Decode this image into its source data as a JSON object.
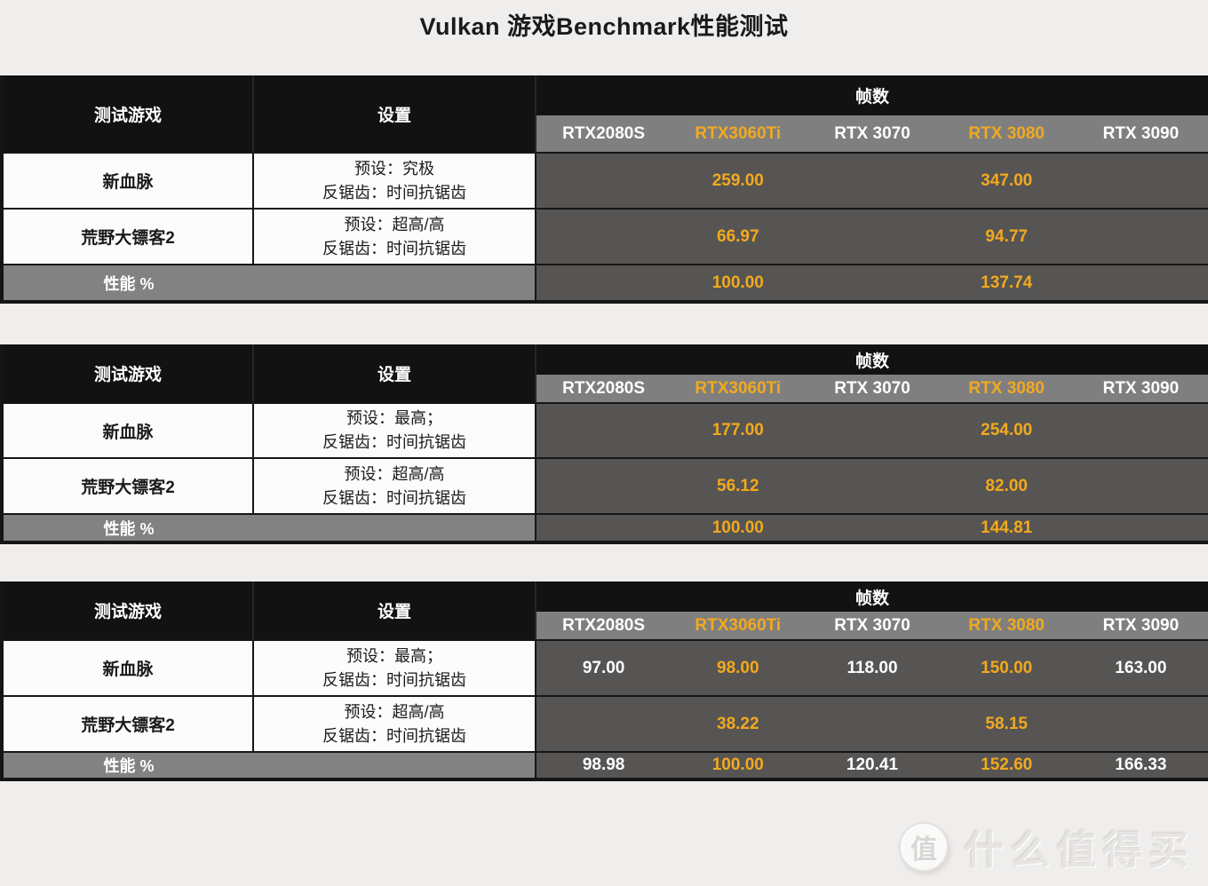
{
  "title": "Vulkan 游戏Benchmark性能测试",
  "colors": {
    "page_bg": "#f0eeec",
    "header_bg": "#121212",
    "gpu_row_bg": "#7f7f7f",
    "value_cell_bg": "#575553",
    "perf_label_bg": "#828282",
    "white_cell_bg": "#fcfcfc",
    "gold": "#f2a91e",
    "white_text": "#ffffff",
    "black_text": "#1a1a1a",
    "border": "#161616"
  },
  "headers": {
    "game": "测试游戏",
    "settings": "设置",
    "frames": "帧数",
    "gpus": [
      "RTX2080S",
      "RTX3060Ti",
      "RTX 3070",
      "RTX 3080",
      "RTX 3090"
    ],
    "highlight_gpus": [
      "RTX3060Ti",
      "RTX 3080"
    ]
  },
  "perf_label": "性能 %",
  "tables": [
    {
      "rows": [
        {
          "game": "新血脉",
          "preset": "预设：究极",
          "aa": "反锯齿：时间抗锯齿",
          "values": [
            "",
            "259.00",
            "",
            "347.00",
            ""
          ]
        },
        {
          "game": "荒野大镖客2",
          "preset": "预设：超高/高",
          "aa": "反锯齿：时间抗锯齿",
          "values": [
            "",
            "66.97",
            "",
            "94.77",
            ""
          ]
        }
      ],
      "perf": [
        "",
        "100.00",
        "",
        "137.74",
        ""
      ]
    },
    {
      "rows": [
        {
          "game": "新血脉",
          "preset": "预设：最高；",
          "aa": "反锯齿：时间抗锯齿",
          "values": [
            "",
            "177.00",
            "",
            "254.00",
            ""
          ]
        },
        {
          "game": "荒野大镖客2",
          "preset": "预设：超高/高",
          "aa": "反锯齿：时间抗锯齿",
          "values": [
            "",
            "56.12",
            "",
            "82.00",
            ""
          ]
        }
      ],
      "perf": [
        "",
        "100.00",
        "",
        "144.81",
        ""
      ]
    },
    {
      "rows": [
        {
          "game": "新血脉",
          "preset": "预设：最高；",
          "aa": "反锯齿：时间抗锯齿",
          "values": [
            "97.00",
            "98.00",
            "118.00",
            "150.00",
            "163.00"
          ]
        },
        {
          "game": "荒野大镖客2",
          "preset": "预设：超高/高",
          "aa": "反锯齿：时间抗锯齿",
          "values": [
            "",
            "38.22",
            "",
            "58.15",
            ""
          ]
        }
      ],
      "perf": [
        "98.98",
        "100.00",
        "120.41",
        "152.60",
        "166.33"
      ]
    }
  ],
  "watermark": {
    "badge": "值",
    "text": "什么值得买"
  },
  "chart_data": [
    {
      "type": "table",
      "title": "Vulkan 游戏Benchmark性能测试 - 表1",
      "value_header": "帧数",
      "columns": [
        "测试游戏",
        "设置",
        "RTX2080S",
        "RTX3060Ti",
        "RTX 3070",
        "RTX 3080",
        "RTX 3090"
      ],
      "rows": [
        {
          "测试游戏": "新血脉",
          "设置": "预设：究极；反锯齿：时间抗锯齿",
          "RTX2080S": null,
          "RTX3060Ti": 259.0,
          "RTX 3070": null,
          "RTX 3080": 347.0,
          "RTX 3090": null
        },
        {
          "测试游戏": "荒野大镖客2",
          "设置": "预设：超高/高；反锯齿：时间抗锯齿",
          "RTX2080S": null,
          "RTX3060Ti": 66.97,
          "RTX 3070": null,
          "RTX 3080": 94.77,
          "RTX 3090": null
        },
        {
          "测试游戏": "性能 %",
          "设置": "",
          "RTX2080S": null,
          "RTX3060Ti": 100.0,
          "RTX 3070": null,
          "RTX 3080": 137.74,
          "RTX 3090": null
        }
      ]
    },
    {
      "type": "table",
      "title": "Vulkan 游戏Benchmark性能测试 - 表2",
      "value_header": "帧数",
      "columns": [
        "测试游戏",
        "设置",
        "RTX2080S",
        "RTX3060Ti",
        "RTX 3070",
        "RTX 3080",
        "RTX 3090"
      ],
      "rows": [
        {
          "测试游戏": "新血脉",
          "设置": "预设：最高；反锯齿：时间抗锯齿",
          "RTX2080S": null,
          "RTX3060Ti": 177.0,
          "RTX 3070": null,
          "RTX 3080": 254.0,
          "RTX 3090": null
        },
        {
          "测试游戏": "荒野大镖客2",
          "设置": "预设：超高/高；反锯齿：时间抗锯齿",
          "RTX2080S": null,
          "RTX3060Ti": 56.12,
          "RTX 3070": null,
          "RTX 3080": 82.0,
          "RTX 3090": null
        },
        {
          "测试游戏": "性能 %",
          "设置": "",
          "RTX2080S": null,
          "RTX3060Ti": 100.0,
          "RTX 3070": null,
          "RTX 3080": 144.81,
          "RTX 3090": null
        }
      ]
    },
    {
      "type": "table",
      "title": "Vulkan 游戏Benchmark性能测试 - 表3",
      "value_header": "帧数",
      "columns": [
        "测试游戏",
        "设置",
        "RTX2080S",
        "RTX3060Ti",
        "RTX 3070",
        "RTX 3080",
        "RTX 3090"
      ],
      "rows": [
        {
          "测试游戏": "新血脉",
          "设置": "预设：最高；反锯齿：时间抗锯齿",
          "RTX2080S": 97.0,
          "RTX3060Ti": 98.0,
          "RTX 3070": 118.0,
          "RTX 3080": 150.0,
          "RTX 3090": 163.0
        },
        {
          "测试游戏": "荒野大镖客2",
          "设置": "预设：超高/高；反锯齿：时间抗锯齿",
          "RTX2080S": null,
          "RTX3060Ti": 38.22,
          "RTX 3070": null,
          "RTX 3080": 58.15,
          "RTX 3090": null
        },
        {
          "测试游戏": "性能 %",
          "设置": "",
          "RTX2080S": 98.98,
          "RTX3060Ti": 100.0,
          "RTX 3070": 120.41,
          "RTX 3080": 152.6,
          "RTX 3090": 166.33
        }
      ]
    }
  ]
}
